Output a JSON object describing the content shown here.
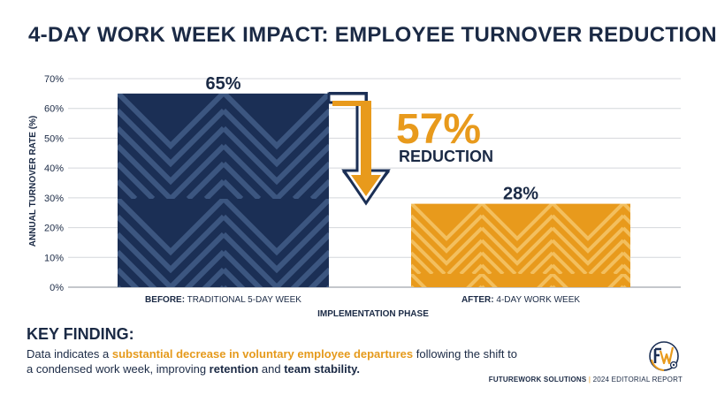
{
  "title": "4-DAY WORK WEEK IMPACT: EMPLOYEE TURNOVER REDUCTION",
  "colors": {
    "navy": "#1b2f55",
    "navy_light": "#3c5680",
    "orange": "#e89a1c",
    "orange_light": "#f3bf5e",
    "text": "#1b2a45",
    "grid": "#d4d7dc"
  },
  "chart_data": {
    "type": "bar",
    "title": "4-DAY WORK WEEK IMPACT: EMPLOYEE TURNOVER REDUCTION",
    "ylabel": "ANNUAL TURNOVER RATE (%)",
    "xlabel": "IMPLEMENTATION PHASE",
    "ylim": [
      0,
      70
    ],
    "yticks": [
      0,
      10,
      20,
      30,
      40,
      50,
      60,
      70
    ],
    "ytick_labels": [
      "0%",
      "10%",
      "20%",
      "30%",
      "40%",
      "50%",
      "60%",
      "70%"
    ],
    "grid": true,
    "categories": [
      {
        "bold": "BEFORE:",
        "rest": " TRADITIONAL 5-DAY WEEK"
      },
      {
        "bold": "AFTER:",
        "rest": " 4-DAY WORK WEEK"
      }
    ],
    "values": [
      65,
      28
    ],
    "value_labels": [
      "65%",
      "28%"
    ],
    "annotation": {
      "value": "57%",
      "label": "REDUCTION"
    }
  },
  "key_finding": {
    "heading": "KEY FINDING:",
    "text_1": "Data indicates a ",
    "highlight": "substantial decrease in voluntary employee departures",
    "text_2": " following the shift to a condensed work week, improving ",
    "bold_1": "retention",
    "text_3": " and ",
    "bold_2": "team stability."
  },
  "footer": {
    "org": "FUTUREWORK SOLUTIONS",
    "separator": "|",
    "report": "2024 EDITORIAL REPORT"
  },
  "logo": {
    "icon": "fw-logo-icon",
    "letters": "FW"
  }
}
